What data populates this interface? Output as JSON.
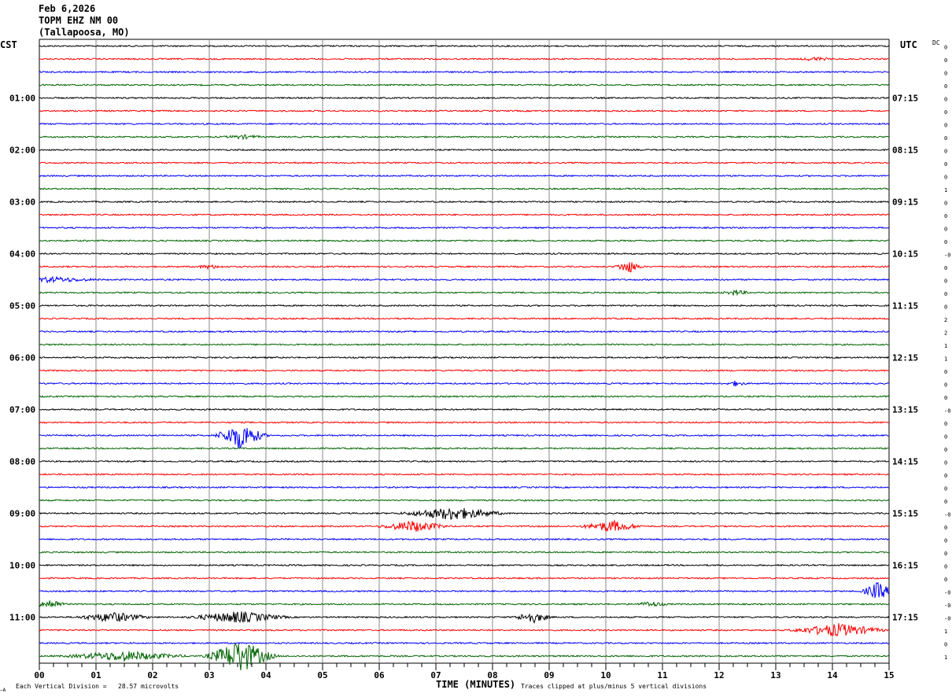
{
  "header": {
    "date": "Feb 6,2026",
    "station": "TOPM EHZ NM 00",
    "location": "(Tallapoosa, MO)"
  },
  "left_zone": "CST",
  "right_zone": "UTC",
  "dc_label": "DC",
  "footer": {
    "scale_text": "Each Vertical Division =   28.57 microvolts",
    "xlabel": "TIME (MINUTES)",
    "clip_text": "Traces clipped at plus/minus 5 vertical divisions",
    "corner_mark": "—A"
  },
  "chart_data": {
    "type": "line",
    "title": "TOPM EHZ NM 00",
    "xlabel": "TIME (MINUTES)",
    "xlim": [
      0,
      15
    ],
    "x_ticks": [
      "00",
      "01",
      "02",
      "03",
      "04",
      "05",
      "06",
      "07",
      "08",
      "09",
      "10",
      "11",
      "12",
      "13",
      "14",
      "15"
    ],
    "left_hour_labels": [
      {
        "row": 4,
        "label": "01:00"
      },
      {
        "row": 8,
        "label": "02:00"
      },
      {
        "row": 12,
        "label": "03:00"
      },
      {
        "row": 16,
        "label": "04:00"
      },
      {
        "row": 20,
        "label": "05:00"
      },
      {
        "row": 24,
        "label": "06:00"
      },
      {
        "row": 28,
        "label": "07:00"
      },
      {
        "row": 32,
        "label": "08:00"
      },
      {
        "row": 36,
        "label": "09:00"
      },
      {
        "row": 40,
        "label": "10:00"
      },
      {
        "row": 44,
        "label": "11:00"
      }
    ],
    "right_hour_labels": [
      {
        "row": 4,
        "label": "07:15"
      },
      {
        "row": 8,
        "label": "08:15"
      },
      {
        "row": 12,
        "label": "09:15"
      },
      {
        "row": 16,
        "label": "10:15"
      },
      {
        "row": 20,
        "label": "11:15"
      },
      {
        "row": 24,
        "label": "12:15"
      },
      {
        "row": 28,
        "label": "13:15"
      },
      {
        "row": 32,
        "label": "14:15"
      },
      {
        "row": 36,
        "label": "15:15"
      },
      {
        "row": 40,
        "label": "16:15"
      },
      {
        "row": 44,
        "label": "17:15"
      }
    ],
    "trace_colors": [
      "#000000",
      "#ff0000",
      "#0000ff",
      "#006400"
    ],
    "trace_count": 48,
    "dc_offsets": [
      "0",
      "0",
      "0",
      "0",
      "0",
      "0",
      "0",
      "0",
      "0",
      "0",
      "0",
      "1",
      "0",
      "0",
      "0",
      "0",
      "-0",
      "0",
      "0",
      "0",
      "0",
      "2",
      "2",
      "1",
      "1",
      "0",
      "0",
      "0",
      "-0",
      "0",
      "0",
      "0",
      "0",
      "0",
      "0",
      "0",
      "-0",
      "0",
      "0",
      "0",
      "0",
      "0",
      "-0",
      "-0",
      "-0",
      "1",
      "0",
      "1"
    ],
    "events": [
      {
        "row": 1,
        "minute": 13.7,
        "amp": 3,
        "dur": 0.5
      },
      {
        "row": 7,
        "minute": 3.6,
        "amp": 3,
        "dur": 0.7
      },
      {
        "row": 17,
        "minute": 3.0,
        "amp": 3,
        "dur": 0.5
      },
      {
        "row": 17,
        "minute": 10.4,
        "amp": 9,
        "dur": 0.35
      },
      {
        "row": 18,
        "minute": 0.2,
        "amp": 4,
        "dur": 1.5
      },
      {
        "row": 19,
        "minute": 12.3,
        "amp": 4,
        "dur": 0.4
      },
      {
        "row": 26,
        "minute": 12.3,
        "amp": 4,
        "dur": 0.3
      },
      {
        "row": 30,
        "minute": 3.55,
        "amp": 18,
        "dur": 0.6
      },
      {
        "row": 36,
        "minute": 7.3,
        "amp": 9,
        "dur": 1.3
      },
      {
        "row": 37,
        "minute": 6.6,
        "amp": 8,
        "dur": 0.9
      },
      {
        "row": 37,
        "minute": 10.1,
        "amp": 8,
        "dur": 0.8
      },
      {
        "row": 42,
        "minute": 14.8,
        "amp": 12,
        "dur": 0.4
      },
      {
        "row": 43,
        "minute": 0.2,
        "amp": 7,
        "dur": 0.4
      },
      {
        "row": 43,
        "minute": 10.8,
        "amp": 4,
        "dur": 0.5
      },
      {
        "row": 44,
        "minute": 1.3,
        "amp": 7,
        "dur": 1.0
      },
      {
        "row": 44,
        "minute": 3.5,
        "amp": 8,
        "dur": 1.3
      },
      {
        "row": 44,
        "minute": 8.7,
        "amp": 8,
        "dur": 0.5
      },
      {
        "row": 45,
        "minute": 14.1,
        "amp": 9,
        "dur": 1.2
      },
      {
        "row": 47,
        "minute": 1.5,
        "amp": 7,
        "dur": 1.6
      },
      {
        "row": 47,
        "minute": 3.55,
        "amp": 22,
        "dur": 0.8
      }
    ]
  }
}
